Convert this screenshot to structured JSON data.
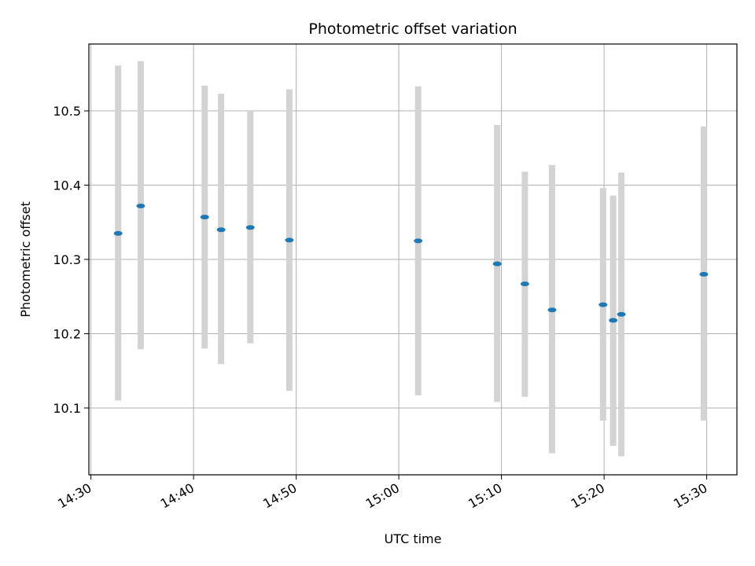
{
  "chart_data": {
    "type": "scatter",
    "title": "Photometric offset variation",
    "xlabel": "UTC time",
    "ylabel": "Photometric offset",
    "x_ticks": [
      "14:30",
      "14:40",
      "14:50",
      "15:00",
      "15:10",
      "15:20",
      "15:30"
    ],
    "y_ticks": [
      "10.1",
      "10.2",
      "10.3",
      "10.4",
      "10.5"
    ],
    "xlim": [
      "14:30",
      "15:33"
    ],
    "ylim": [
      10.01,
      10.59
    ],
    "grid": true,
    "marker_color": "#1f77b4",
    "errorbar_color": "#d3d3d3",
    "points": [
      {
        "time": "14:32:39",
        "value": 10.335,
        "low": 10.11,
        "high": 10.561
      },
      {
        "time": "14:34:51",
        "value": 10.372,
        "low": 10.179,
        "high": 10.567
      },
      {
        "time": "14:41:05",
        "value": 10.357,
        "low": 10.18,
        "high": 10.534
      },
      {
        "time": "14:42:41",
        "value": 10.34,
        "low": 10.159,
        "high": 10.523
      },
      {
        "time": "14:45:32",
        "value": 10.343,
        "low": 10.187,
        "high": 10.5
      },
      {
        "time": "14:49:20",
        "value": 10.326,
        "low": 10.123,
        "high": 10.529
      },
      {
        "time": "15:01:53",
        "value": 10.325,
        "low": 10.117,
        "high": 10.533
      },
      {
        "time": "15:09:35",
        "value": 10.294,
        "low": 10.108,
        "high": 10.481
      },
      {
        "time": "15:12:17",
        "value": 10.267,
        "low": 10.115,
        "high": 10.418
      },
      {
        "time": "15:14:56",
        "value": 10.232,
        "low": 10.039,
        "high": 10.427
      },
      {
        "time": "15:19:54",
        "value": 10.239,
        "low": 10.083,
        "high": 10.396
      },
      {
        "time": "15:20:53",
        "value": 10.218,
        "low": 10.049,
        "high": 10.386
      },
      {
        "time": "15:21:41",
        "value": 10.226,
        "low": 10.035,
        "high": 10.417
      },
      {
        "time": "15:29:43",
        "value": 10.28,
        "low": 10.083,
        "high": 10.479
      }
    ]
  }
}
